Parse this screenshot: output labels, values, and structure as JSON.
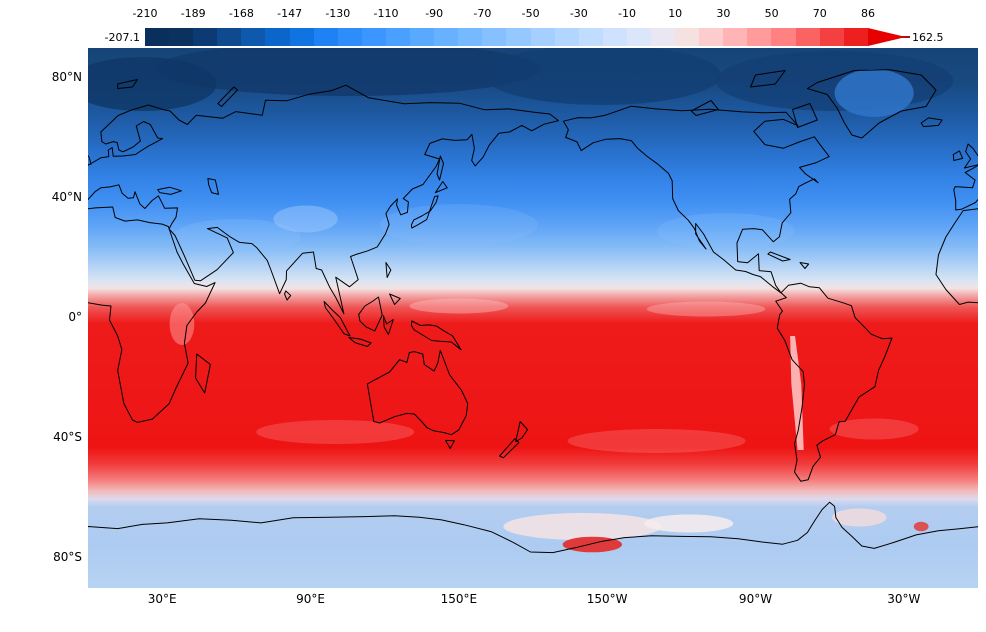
{
  "colorbar": {
    "tick_labels": [
      "-210",
      "-189",
      "-168",
      "-147",
      "-130",
      "-110",
      "-90",
      "-70",
      "-50",
      "-30",
      "-10",
      "10",
      "30",
      "50",
      "70",
      "86"
    ],
    "min_label": "-207.1",
    "max_label": "162.5",
    "arrow_color": "#e60000",
    "segment_colors": [
      "#0a2f5c",
      "#0b315f",
      "#0d3a72",
      "#0f4a8f",
      "#0e59ae",
      "#0b66cb",
      "#0f73e2",
      "#1e81f4",
      "#2d8dfb",
      "#3b97ff",
      "#4aa0ff",
      "#59a9ff",
      "#68b1ff",
      "#77b9ff",
      "#86c0ff",
      "#95c8ff",
      "#a4cfff",
      "#b2d6ff",
      "#c0dcff",
      "#cee2ff",
      "#dce6fa",
      "#eae6f2",
      "#f6e1e1",
      "#fdcccc",
      "#ffb5b5",
      "#ff9b9b",
      "#ff8181",
      "#fb6262",
      "#f44040",
      "#ee1f1f"
    ]
  },
  "map": {
    "lat_labels": [
      {
        "text": "80°N",
        "deg": 80
      },
      {
        "text": "40°N",
        "deg": 40
      },
      {
        "text": "0°",
        "deg": 0
      },
      {
        "text": "40°S",
        "deg": -40
      },
      {
        "text": "80°S",
        "deg": -80
      }
    ],
    "lon_labels": [
      {
        "text": "30°E",
        "deg": 30
      },
      {
        "text": "90°E",
        "deg": 90
      },
      {
        "text": "150°E",
        "deg": 150
      },
      {
        "text": "150°W",
        "deg": 210
      },
      {
        "text": "90°W",
        "deg": 270
      },
      {
        "text": "30°W",
        "deg": 330
      }
    ],
    "lat_gradient": [
      {
        "o": 0,
        "c": "#164478"
      },
      {
        "o": 6,
        "c": "#18497f"
      },
      {
        "o": 12,
        "c": "#1d58a0"
      },
      {
        "o": 17,
        "c": "#2468bd"
      },
      {
        "o": 21,
        "c": "#2b77d6"
      },
      {
        "o": 25,
        "c": "#3585ea"
      },
      {
        "o": 29,
        "c": "#4292f4"
      },
      {
        "o": 33,
        "c": "#5fa4f6"
      },
      {
        "o": 37,
        "c": "#86bcf6"
      },
      {
        "o": 40,
        "c": "#aed0f6"
      },
      {
        "o": 43,
        "c": "#d8e4f4"
      },
      {
        "o": 44.5,
        "c": "#f3e3e3"
      },
      {
        "o": 46,
        "c": "#f2a0a0"
      },
      {
        "o": 48,
        "c": "#ef5555"
      },
      {
        "o": 51,
        "c": "#ee1b1b"
      },
      {
        "o": 74,
        "c": "#ee1414"
      },
      {
        "o": 77,
        "c": "#f13b3b"
      },
      {
        "o": 80,
        "c": "#f47d7d"
      },
      {
        "o": 82,
        "c": "#f3b9b9"
      },
      {
        "o": 83.5,
        "c": "#dcd9ec"
      },
      {
        "o": 85,
        "c": "#b3cdf0"
      },
      {
        "o": 92,
        "c": "#adcbf1"
      },
      {
        "o": 100,
        "c": "#b7d3f3"
      }
    ]
  },
  "chart_data": {
    "type": "heatmap",
    "title": "",
    "projection": "equirectangular world map, 0°E at left edge (Pacific-centered), 90°N at top",
    "colorbar": {
      "orientation": "horizontal",
      "position": "top",
      "tick_values": [
        -210,
        -189,
        -168,
        -147,
        -130,
        -110,
        -90,
        -70,
        -50,
        -30,
        -10,
        10,
        30,
        50,
        70,
        86
      ],
      "data_min": -207.1,
      "data_max": 162.5,
      "overflow_arrow": "right",
      "palette": "diverging blue-white-red, 30 discrete boxes"
    },
    "lat_axis_ticks": [
      "80°N",
      "40°N",
      "0°",
      "40°S",
      "80°S"
    ],
    "lon_axis_ticks": [
      "30°E",
      "90°E",
      "150°E",
      "150°W",
      "90°W",
      "30°W"
    ],
    "zonal_profile": {
      "lat": [
        90,
        80,
        70,
        60,
        50,
        40,
        30,
        20,
        15,
        12,
        10,
        0,
        -20,
        -40,
        -52,
        -58,
        -62,
        -70,
        -90
      ],
      "value": [
        -190,
        -180,
        -160,
        -130,
        -100,
        -70,
        -35,
        0,
        35,
        70,
        110,
        150,
        150,
        145,
        110,
        60,
        -10,
        -30,
        -35
      ]
    },
    "notable_features": [
      "darkest navy minimum over Arctic and Scandinavia/Siberia (~-190)",
      "sharp blue-to-white-to-red transition near 10-13°N",
      "saturated red (beyond scale max 86, data max 162.5) from ~8°N to ~52°S",
      "pale blue band poleward of ~62°S over the Antarctic",
      "white/pink patches along Antarctic coast with a small red patch near the Ross Ice Shelf",
      "narrow light stripe along the Andes"
    ]
  }
}
